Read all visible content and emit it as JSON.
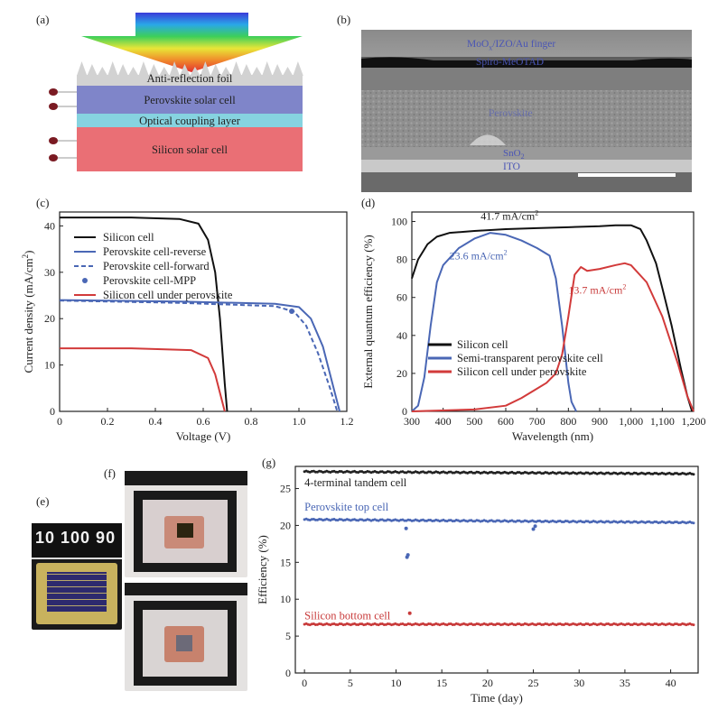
{
  "panel_labels": {
    "a": "(a)",
    "b": "(b)",
    "c": "(c)",
    "d": "(d)",
    "e": "(e)",
    "f": "(f)",
    "g": "(g)"
  },
  "panel_a": {
    "layers": [
      "Anti-reflection foil",
      "Perovskite solar cell",
      "Optical coupling layer",
      "Silicon solar cell"
    ],
    "colors": {
      "foil": "#d2d2d2",
      "perovskite": "#7f85c9",
      "coupling": "#86d3e0",
      "silicon": "#ea6f75",
      "electrode": "#7a1a22"
    }
  },
  "panel_b": {
    "labels": [
      "MoO",
      "x",
      "/IZO/Au finger",
      "Spiro-MeOTAD",
      "Perovskite",
      "SnO",
      "2",
      "ITO"
    ],
    "label_color": "#4a55b5"
  },
  "panel_e": {
    "ruler_text": "10 100 90"
  },
  "chart_data": [
    {
      "type": "line",
      "panel": "c",
      "xlabel": "Voltage (V)",
      "ylabel": "Current density (mA/cm",
      "ylabel_sup": "2",
      "ylabel_end": ")",
      "xlim": [
        0,
        1.2
      ],
      "ylim": [
        0,
        43
      ],
      "xticks": [
        "0",
        "0.2",
        "0.4",
        "0.6",
        "0.8",
        "1.0",
        "1.2"
      ],
      "yticks": [
        "0",
        "10",
        "20",
        "30",
        "40"
      ],
      "legend": [
        "Silicon cell",
        "Perovskite cell-reverse",
        "Perovskite cell-forward",
        "Perovskite cell-MPP",
        "Silicon cell under perovskite"
      ],
      "series": [
        {
          "name": "Silicon cell",
          "color": "#111111",
          "x": [
            0,
            0.3,
            0.5,
            0.58,
            0.62,
            0.65,
            0.67,
            0.69,
            0.7
          ],
          "y": [
            41.8,
            41.8,
            41.5,
            40.5,
            37,
            30,
            20,
            6,
            0
          ]
        },
        {
          "name": "Perovskite cell-reverse",
          "color": "#4a67b5",
          "x": [
            0,
            0.5,
            0.9,
            1.0,
            1.05,
            1.1,
            1.14,
            1.17
          ],
          "y": [
            24,
            23.7,
            23.2,
            22.5,
            20,
            14,
            6,
            0
          ]
        },
        {
          "name": "Perovskite cell-forward",
          "color": "#4a67b5",
          "dashed": true,
          "x": [
            0,
            0.5,
            0.9,
            0.98,
            1.03,
            1.08,
            1.13,
            1.16
          ],
          "y": [
            23.9,
            23.4,
            22.7,
            21.5,
            18.5,
            12.5,
            5,
            0
          ]
        },
        {
          "name": "Perovskite cell-MPP",
          "color": "#4a67b5",
          "marker": true,
          "x": [
            0.97
          ],
          "y": [
            21.6
          ]
        },
        {
          "name": "Silicon cell under perovskite",
          "color": "#d23a3a",
          "x": [
            0,
            0.3,
            0.55,
            0.62,
            0.65,
            0.67,
            0.69
          ],
          "y": [
            13.6,
            13.6,
            13.2,
            11.5,
            8,
            4,
            0
          ]
        }
      ]
    },
    {
      "type": "line",
      "panel": "d",
      "xlabel": "Wavelength (nm)",
      "ylabel": "External quantum efficiency (%)",
      "xlim": [
        300,
        1200
      ],
      "ylim": [
        0,
        105
      ],
      "xticks": [
        "300",
        "400",
        "500",
        "600",
        "700",
        "800",
        "900",
        "1,000",
        "1,100",
        "1,200"
      ],
      "yticks": [
        "0",
        "20",
        "40",
        "60",
        "80",
        "100"
      ],
      "annotations": [
        {
          "text": "41.7 mA/cm",
          "sup": "2",
          "color": "#222222"
        },
        {
          "text": "23.6 mA/cm",
          "sup": "2",
          "color": "#4a67b5"
        },
        {
          "text": "13.7 mA/cm",
          "sup": "2",
          "color": "#c83a3a"
        }
      ],
      "legend": [
        "Silicon cell",
        "Semi-transparent perovskite cell",
        "Silicon cell under perovskite"
      ],
      "series": [
        {
          "name": "Silicon cell",
          "color": "#111111",
          "x": [
            300,
            320,
            350,
            380,
            420,
            500,
            600,
            700,
            800,
            900,
            950,
            1000,
            1030,
            1050,
            1080,
            1100,
            1130,
            1160,
            1180,
            1195
          ],
          "y": [
            70,
            80,
            88,
            92,
            94,
            95,
            96,
            96.5,
            97,
            97.5,
            98,
            98,
            96,
            90,
            78,
            65,
            45,
            22,
            8,
            0
          ]
        },
        {
          "name": "Semi-transparent perovskite cell",
          "color": "#4a67b5",
          "x": [
            300,
            320,
            340,
            360,
            380,
            400,
            450,
            500,
            550,
            600,
            650,
            700,
            740,
            760,
            780,
            790,
            800,
            810,
            825
          ],
          "y": [
            0,
            3,
            18,
            45,
            68,
            77,
            86,
            91,
            94,
            93,
            90,
            86,
            82,
            70,
            45,
            30,
            15,
            5,
            0
          ]
        },
        {
          "name": "Silicon cell under perovskite",
          "color": "#d23a3a",
          "x": [
            300,
            500,
            600,
            650,
            700,
            730,
            760,
            780,
            800,
            820,
            840,
            860,
            900,
            950,
            980,
            1000,
            1050,
            1100,
            1150,
            1180,
            1200
          ],
          "y": [
            0,
            1,
            3,
            7,
            12,
            15,
            20,
            30,
            50,
            72,
            76,
            74,
            75,
            77,
            78,
            77,
            68,
            50,
            25,
            8,
            0
          ]
        }
      ]
    },
    {
      "type": "scatter",
      "panel": "g",
      "xlabel": "Time (day)",
      "ylabel": "Efficiency (%)",
      "xlim": [
        -1,
        43
      ],
      "ylim": [
        0,
        28
      ],
      "xticks": [
        "0",
        "5",
        "10",
        "15",
        "20",
        "25",
        "30",
        "35",
        "40"
      ],
      "yticks": [
        "0",
        "5",
        "10",
        "15",
        "20",
        "25"
      ],
      "series": [
        {
          "name": "4-terminal tandem cell",
          "color": "#222222",
          "y_start": 27.3,
          "y_end": 27.0
        },
        {
          "name": "Perovskite top cell",
          "color": "#4a67b5",
          "y_start": 20.8,
          "y_end": 20.4,
          "outliers": [
            [
              11.2,
              15.7
            ],
            [
              11.3,
              16.0
            ],
            [
              11.1,
              19.6
            ],
            [
              25,
              19.5
            ],
            [
              25.2,
              19.9
            ]
          ]
        },
        {
          "name": "Silicon bottom cell",
          "color": "#c83a3a",
          "y_start": 6.6,
          "y_end": 6.6,
          "outliers": [
            [
              11.5,
              8.1
            ]
          ]
        }
      ]
    }
  ]
}
